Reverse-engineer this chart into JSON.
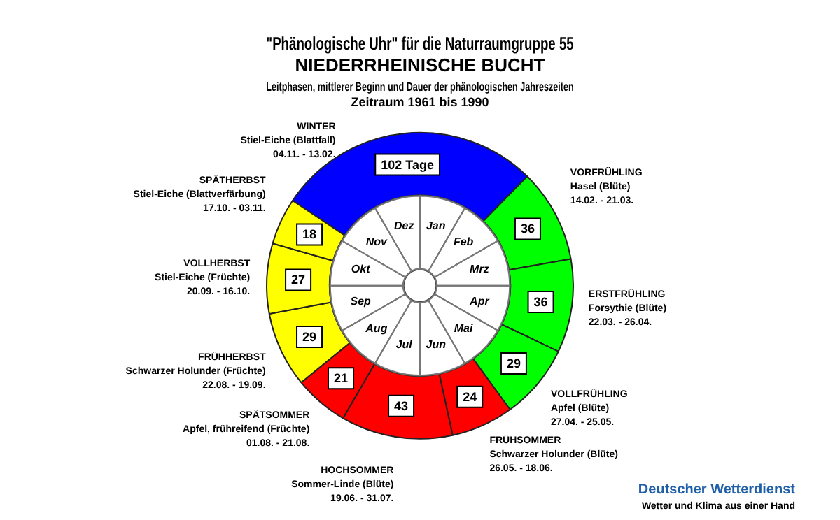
{
  "chart_data": {
    "type": "donut",
    "title": "\"Phänologische Uhr\" für die Naturraumgruppe 55\nNIEDERRHEINISCHE BUCHT",
    "subtitle": "Leitphasen, mittlerer Beginn und Dauer der phänologischen Jahreszeiten\nZeitraum 1961 bis 1990",
    "categories": [
      "WINTER\nStiel-Eiche (Blattfall)\n04.11. - 13.02.",
      "VORFRÜHLING\nHasel (Blüte)\n14.02. - 21.03.",
      "ERSTFRÜHLING\nForsythie (Blüte)\n22.03. - 26.04.",
      "VOLLFRÜHLING\nApfel (Blüte)\n27.04. - 25.05.",
      "FRÜHSOMMER\nSchwarzer Holunder (Blüte)\n26.05. - 18.06.",
      "HOCHSOMMER\nSommer-Linde (Blüte)\n19.06. - 31.07.",
      "SPÄTSOMMER\nApfel, frühreifend (Früchte)\n01.08. - 21.08.",
      "FRÜHHERBST\nSchwarzer Holunder (Früchte)\n22.08. - 19.09.",
      "VOLLHERBST\nStiel-Eiche (Früchte)\n20.09. - 16.10.",
      "SPÄTHERBST\nStiel-Eiche (Blattverfärbung)\n17.10. - 03.11."
    ],
    "values": [
      102,
      36,
      36,
      29,
      24,
      43,
      21,
      29,
      27,
      18
    ],
    "value_labels": [
      "102 Tage",
      "36",
      "36",
      "29",
      "24",
      "43",
      "21",
      "29",
      "27",
      "18"
    ],
    "colors": [
      "#0000ff",
      "#00ff00",
      "#00ff00",
      "#00ff00",
      "#ff0000",
      "#ff0000",
      "#ff0000",
      "#ffff00",
      "#ffff00",
      "#ffff00"
    ],
    "legend": false,
    "annotations": [
      "Jan",
      "Feb",
      "Mrz",
      "Apr",
      "Mai",
      "Jun",
      "Jul",
      "Aug",
      "Sep",
      "Okt",
      "Nov",
      "Dez",
      "Deutscher Wetterdienst",
      "Wetter und Klima aus einer Hand"
    ]
  }
}
